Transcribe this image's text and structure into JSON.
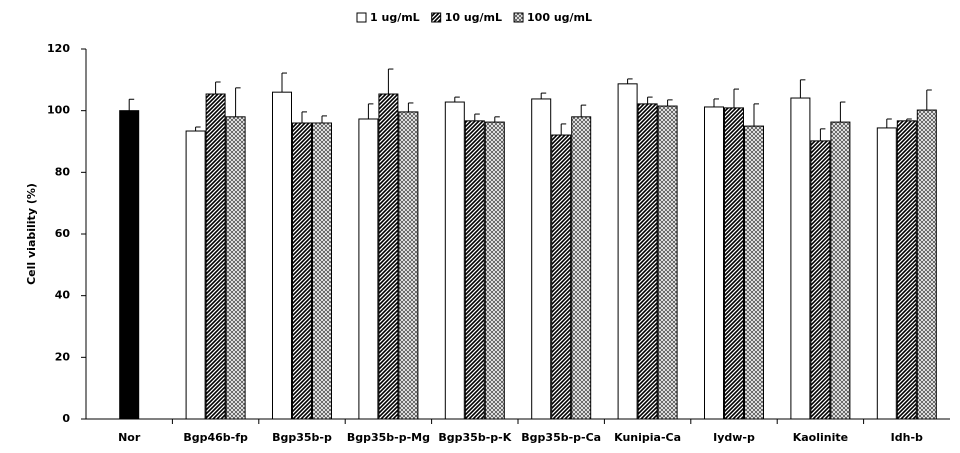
{
  "chart_data": {
    "type": "bar",
    "y_label": "Cell viability (%)",
    "categories": [
      "Nor",
      "Bgp46b-fp",
      "Bgp35b-p",
      "Bgp35b-p-Mg",
      "Bgp35b-p-K",
      "Bgp35b-p-Ca",
      "Kunipia-Ca",
      "Iydw-p",
      "Kaolinite",
      "Idh-b"
    ],
    "series": [
      {
        "color": "#000000",
        "fill": "solid",
        "values": [
          100,
          null,
          null,
          null,
          null,
          null,
          null,
          null,
          null,
          null
        ],
        "errors": [
          3.7,
          null,
          null,
          null,
          null,
          null,
          null,
          null,
          null,
          null
        ]
      },
      {
        "name": "1 ug/mL",
        "color": "#ffffff",
        "fill": "solid",
        "values": [
          null,
          93.4,
          106,
          97.3,
          102.8,
          103.8,
          108.7,
          101.2,
          104.1,
          94.4
        ],
        "errors": [
          null,
          1.3,
          6.2,
          4.9,
          1.6,
          1.9,
          1.6,
          2.6,
          5.9,
          2.9
        ]
      },
      {
        "name": "10 ug/mL",
        "color": "#000000",
        "fill": "diagonal",
        "values": [
          null,
          105.4,
          96,
          105.4,
          96.7,
          92.1,
          102.2,
          100.9,
          90.2,
          96.7
        ],
        "errors": [
          null,
          3.9,
          3.6,
          8.1,
          2.2,
          3.6,
          2.2,
          6.1,
          3.9,
          0.6
        ]
      },
      {
        "name": "100 ug/mL",
        "color": "#555555",
        "fill": "crosshatch",
        "values": [
          null,
          98,
          96,
          99.6,
          96.3,
          98,
          101.5,
          95,
          96.3,
          100.2
        ],
        "errors": [
          null,
          9.4,
          2.3,
          2.9,
          1.7,
          3.8,
          2,
          7.2,
          6.5,
          6.5
        ]
      }
    ],
    "ylim": [
      0,
      120
    ],
    "yticks": [
      0,
      20,
      40,
      60,
      80,
      100,
      120
    ],
    "grid": false,
    "legend": "top"
  }
}
